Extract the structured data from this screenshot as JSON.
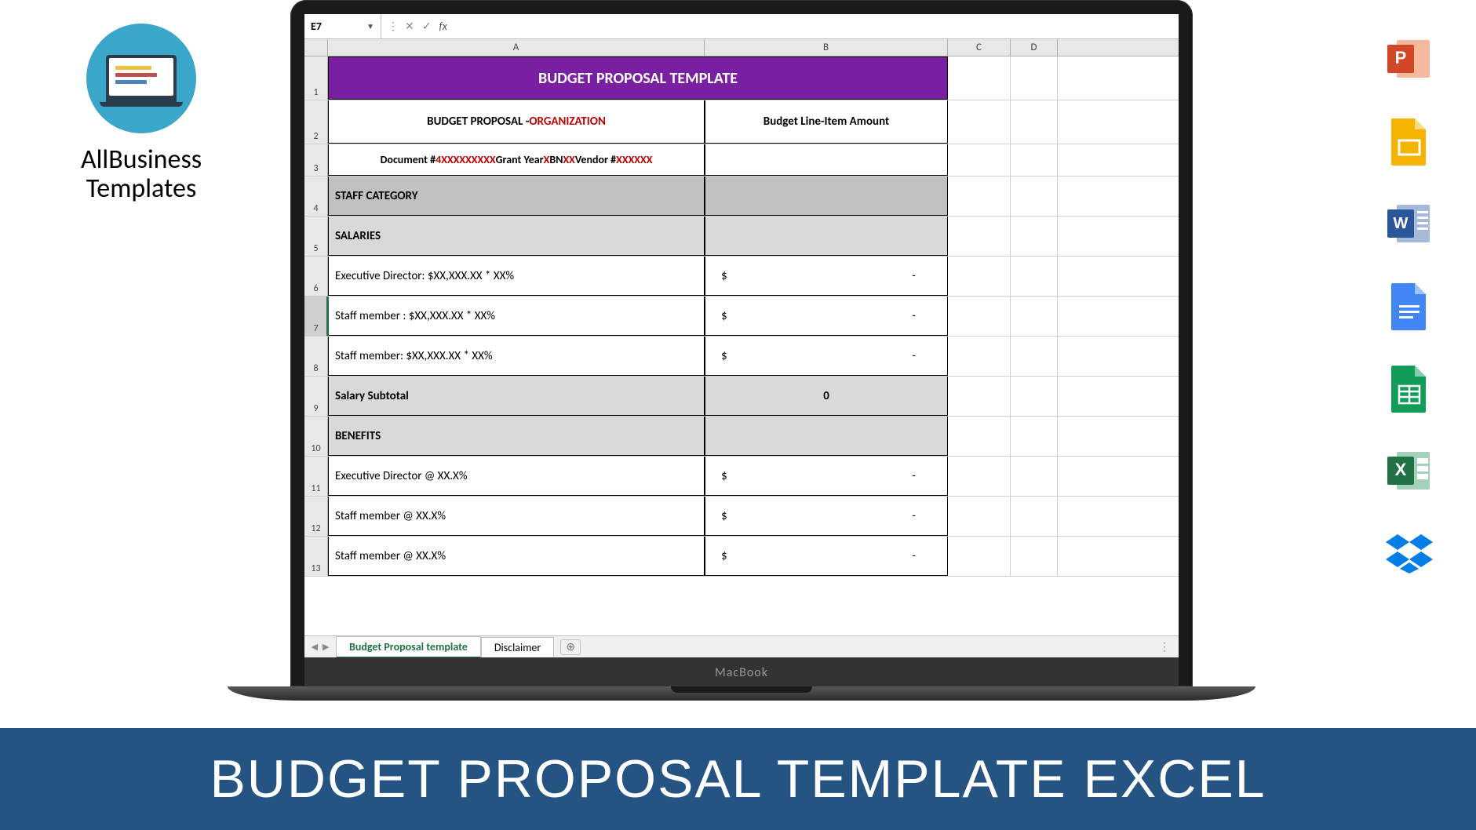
{
  "logo": {
    "line1": "AllBusiness",
    "line2": "Templates"
  },
  "excel": {
    "name_box": "E7",
    "columns": [
      "A",
      "B",
      "C",
      "D"
    ],
    "sheet_tabs": {
      "active": "Budget Proposal template",
      "other": "Disclaimer"
    },
    "header_title": "BUDGET PROPOSAL TEMPLATE",
    "subtitle_prefix": "BUDGET PROPOSAL - ",
    "subtitle_red": "ORGANIZATION",
    "header_b": "Budget Line-Item Amount",
    "docline": {
      "t1": "Document # ",
      "r1": "4XXXXXXXXX",
      "t2": "   Grant Year ",
      "r2": "X",
      "t3": "   BN",
      "r3": "XX",
      "t4": " Vendor #",
      "r4": "XXXXXX"
    },
    "rows": [
      {
        "num": "4",
        "type": "gray",
        "a": "STAFF CATEGORY",
        "b": ""
      },
      {
        "num": "5",
        "type": "ltgray",
        "a": "  SALARIES",
        "b": ""
      },
      {
        "num": "6",
        "type": "val",
        "a": "Executive Director: $XX,XXX.XX * XX%",
        "l": "$",
        "r": "-"
      },
      {
        "num": "7",
        "type": "val",
        "a": "Staff member : $XX,XXX.XX * XX%",
        "l": "$",
        "r": "-",
        "sel": true
      },
      {
        "num": "8",
        "type": "val",
        "a": "Staff member: $XX,XXX.XX * XX%",
        "l": "$",
        "r": "-"
      },
      {
        "num": "9",
        "type": "ltgray",
        "a": "Salary Subtotal",
        "b": "0",
        "bcenter": true
      },
      {
        "num": "10",
        "type": "ltgray",
        "a": "  BENEFITS",
        "b": ""
      },
      {
        "num": "11",
        "type": "val",
        "a": "Executive Director @ XX.X%",
        "l": "$",
        "r": "-"
      },
      {
        "num": "12",
        "type": "val",
        "a": "Staff member @ XX.X%",
        "l": "$",
        "r": "-"
      },
      {
        "num": "13",
        "type": "val",
        "a": "Staff member @ XX.X%",
        "l": "$",
        "r": "-"
      }
    ]
  },
  "banner": "BUDGET PROPOSAL TEMPLATE EXCEL",
  "macbook_label": "MacBook",
  "icons": {
    "powerpoint": {
      "bg": "#d24726",
      "letter": "P"
    },
    "slides": {
      "bg": "#f4b400",
      "letter": ""
    },
    "word": {
      "bg": "#2b579a",
      "letter": "W"
    },
    "docs": {
      "bg": "#4285f4",
      "letter": ""
    },
    "sheets": {
      "bg": "#0f9d58",
      "letter": ""
    },
    "excel": {
      "bg": "#217346",
      "letter": "X"
    },
    "dropbox": {
      "bg": "#007ee5",
      "letter": ""
    }
  },
  "colors": {
    "purple": "#7a1fa2",
    "gray": "#c0c0c0",
    "ltgray": "#d9d9d9",
    "banner": "#265482",
    "red": "#c00000",
    "excel_green": "#217346"
  }
}
